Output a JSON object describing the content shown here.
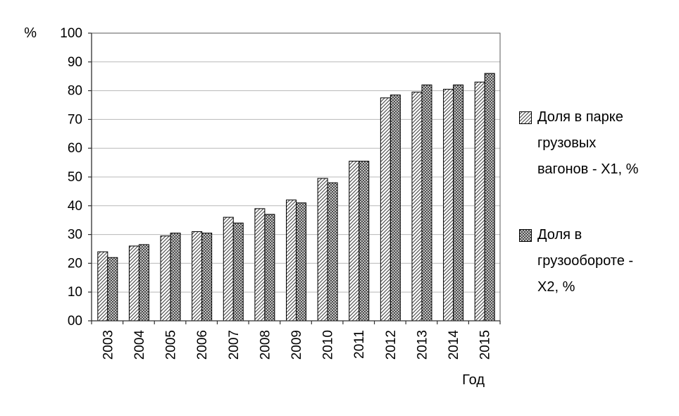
{
  "chart_data": {
    "type": "bar",
    "title": "",
    "xlabel": "Год",
    "ylabel": "%",
    "ylim": [
      0,
      100
    ],
    "grid": true,
    "legend_position": "right",
    "categories": [
      "2003",
      "2004",
      "2005",
      "2006",
      "2007",
      "2008",
      "2009",
      "2010",
      "2011",
      "2012",
      "2013",
      "2014",
      "2015"
    ],
    "ytick_labels": [
      "00",
      "10",
      "20",
      "30",
      "40",
      "50",
      "60",
      "70",
      "80",
      "90",
      "100"
    ],
    "series": [
      {
        "name": "Доля в парке грузовых вагонов - Х1, %",
        "pattern": "diagonal-hatch",
        "values": [
          24,
          26,
          29.5,
          31,
          36,
          39,
          42,
          49.5,
          55.5,
          77.5,
          79.5,
          80.5,
          83
        ]
      },
      {
        "name": "Доля в грузообороте - Х2, %",
        "pattern": "cross-hatch",
        "values": [
          22,
          26.5,
          30.5,
          30.5,
          34,
          37,
          41,
          48,
          55.5,
          78.5,
          82,
          82,
          86
        ]
      }
    ],
    "colors": {
      "bar_fill": "#fdfdfd",
      "bar_stroke": "#000000",
      "hatch": "#404040",
      "grid": "#b8b8b8",
      "axis": "#595959",
      "text": "#000000"
    }
  }
}
